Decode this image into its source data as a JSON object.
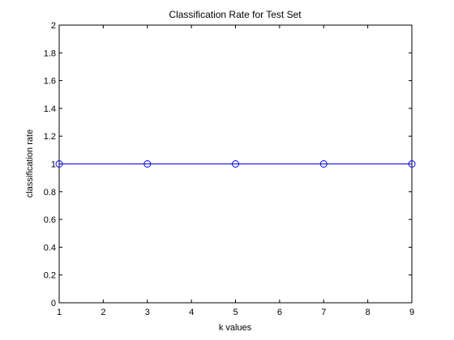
{
  "chart_data": {
    "type": "line",
    "title": "Classification Rate for Test Set",
    "xlabel": "k values",
    "ylabel": "classification rate",
    "xlim": [
      1,
      9
    ],
    "ylim": [
      0,
      2
    ],
    "x_ticks": [
      1,
      2,
      3,
      4,
      5,
      6,
      7,
      8,
      9
    ],
    "x_tick_labels": [
      "1",
      "2",
      "3",
      "4",
      "5",
      "6",
      "7",
      "8",
      "9"
    ],
    "y_ticks": [
      0,
      0.2,
      0.4,
      0.6,
      0.8,
      1,
      1.2,
      1.4,
      1.6,
      1.8,
      2
    ],
    "y_tick_labels": [
      "0",
      "0.2",
      "0.4",
      "0.6",
      "0.8",
      "1",
      "1.2",
      "1.4",
      "1.6",
      "1.8",
      "2"
    ],
    "grid": false,
    "series": [
      {
        "name": "classification rate",
        "x": [
          1,
          3,
          5,
          7,
          9
        ],
        "values": [
          1,
          1,
          1,
          1,
          1
        ],
        "color": "#0000ff",
        "marker": "circle"
      }
    ]
  }
}
